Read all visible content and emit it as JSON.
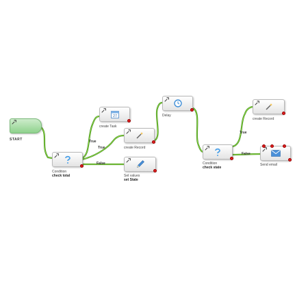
{
  "colors": {
    "edge_outer": "#3c8a1e",
    "edge_inner": "#9be046",
    "port": "#e02020",
    "start_fill": "#8fd28d"
  },
  "nodes": {
    "start": {
      "label": "START",
      "icon": "gear-icon"
    },
    "condition1": {
      "type": "Condition",
      "name": "check total",
      "icon": "question-mark-icon"
    },
    "create_task": {
      "type": "create Task",
      "icon": "calendar-icon",
      "calendar_day": "27"
    },
    "create_record1": {
      "type": "create Record",
      "icon": "magic-wand-icon"
    },
    "set_values": {
      "type": "Set values",
      "name": "set State",
      "icon": "pencil-icon"
    },
    "delay": {
      "type": "Delay",
      "icon": "clock-icon"
    },
    "condition2": {
      "type": "Condition",
      "name": "check state",
      "icon": "question-mark-icon"
    },
    "create_record2": {
      "type": "create Record",
      "icon": "magic-wand-icon"
    },
    "send_email": {
      "type": "Send email",
      "icon": "envelope-icon"
    }
  },
  "edge_labels": {
    "c1_true_task": "True",
    "c1_true_record": "True",
    "c1_false": "False",
    "c2_true": "True",
    "c2_false": "False"
  }
}
